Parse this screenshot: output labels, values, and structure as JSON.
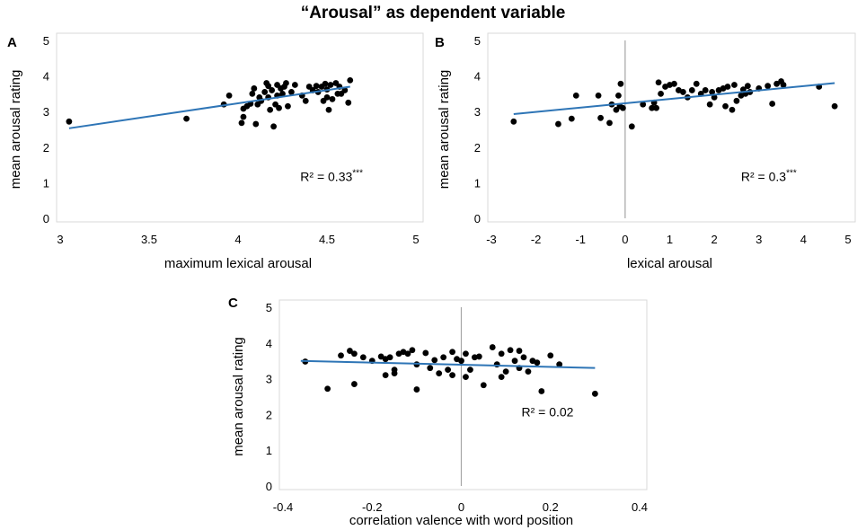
{
  "figure_title": "“Arousal” as dependent variable",
  "chart_data": [
    {
      "type": "scatter",
      "panel_label": "A",
      "xlabel": "maximum lexical arousal",
      "ylabel": "mean arousal rating",
      "xlim": [
        3,
        5
      ],
      "ylim": [
        0,
        5
      ],
      "xticks": [
        3,
        3.5,
        4,
        4.5,
        5
      ],
      "xtick_labels": [
        "3",
        "3.5",
        "4",
        "4.5",
        "5"
      ],
      "yticks": [
        0,
        1,
        2,
        3,
        4,
        5
      ],
      "ytick_labels": [
        "0",
        "1",
        "2",
        "3",
        "4",
        "5"
      ],
      "r2_text": "R² = 0.33",
      "r2_superscript": "***",
      "r2_anchor": [
        4.35,
        1.05
      ],
      "trendline": {
        "x": [
          3.05,
          4.63
        ],
        "y": [
          2.53,
          3.7
        ],
        "color": "#2e75b6"
      },
      "zero_line_x": null,
      "point_color": "#000000",
      "points": [
        [
          3.05,
          2.72
        ],
        [
          3.71,
          2.8
        ],
        [
          3.92,
          3.2
        ],
        [
          3.95,
          3.45
        ],
        [
          4.02,
          2.68
        ],
        [
          4.03,
          2.85
        ],
        [
          4.03,
          3.08
        ],
        [
          4.05,
          3.15
        ],
        [
          4.07,
          3.22
        ],
        [
          4.08,
          3.5
        ],
        [
          4.09,
          3.65
        ],
        [
          4.1,
          2.65
        ],
        [
          4.11,
          3.2
        ],
        [
          4.12,
          3.4
        ],
        [
          4.13,
          3.3
        ],
        [
          4.15,
          3.55
        ],
        [
          4.16,
          3.8
        ],
        [
          4.17,
          3.4
        ],
        [
          4.17,
          3.72
        ],
        [
          4.18,
          3.05
        ],
        [
          4.19,
          3.6
        ],
        [
          4.2,
          2.58
        ],
        [
          4.21,
          3.2
        ],
        [
          4.22,
          3.45
        ],
        [
          4.22,
          3.75
        ],
        [
          4.23,
          3.1
        ],
        [
          4.24,
          3.65
        ],
        [
          4.25,
          3.5
        ],
        [
          4.26,
          3.7
        ],
        [
          4.27,
          3.8
        ],
        [
          4.28,
          3.15
        ],
        [
          4.3,
          3.55
        ],
        [
          4.32,
          3.75
        ],
        [
          4.36,
          3.45
        ],
        [
          4.38,
          3.3
        ],
        [
          4.4,
          3.7
        ],
        [
          4.42,
          3.6
        ],
        [
          4.44,
          3.72
        ],
        [
          4.45,
          3.55
        ],
        [
          4.47,
          3.7
        ],
        [
          4.48,
          3.3
        ],
        [
          4.49,
          3.78
        ],
        [
          4.5,
          3.4
        ],
        [
          4.5,
          3.62
        ],
        [
          4.51,
          3.05
        ],
        [
          4.52,
          3.75
        ],
        [
          4.53,
          3.35
        ],
        [
          4.55,
          3.8
        ],
        [
          4.56,
          3.5
        ],
        [
          4.57,
          3.7
        ],
        [
          4.58,
          3.5
        ],
        [
          4.6,
          3.6
        ],
        [
          4.62,
          3.25
        ],
        [
          4.63,
          3.88
        ]
      ]
    },
    {
      "type": "scatter",
      "panel_label": "B",
      "xlabel": "lexical arousal",
      "ylabel": "mean arousal rating",
      "xlim": [
        -3,
        5
      ],
      "ylim": [
        0,
        5
      ],
      "xticks": [
        -3,
        -2,
        -1,
        0,
        1,
        2,
        3,
        4,
        5
      ],
      "xtick_labels": [
        "-3",
        "-2",
        "-1",
        "0",
        "1",
        "2",
        "3",
        "4",
        "5"
      ],
      "yticks": [
        0,
        1,
        2,
        3,
        4,
        5
      ],
      "ytick_labels": [
        "0",
        "1",
        "2",
        "3",
        "4",
        "5"
      ],
      "r2_text": "R² = 0.3",
      "r2_superscript": "***",
      "r2_anchor": [
        2.6,
        1.05
      ],
      "trendline": {
        "x": [
          -2.5,
          4.7
        ],
        "y": [
          2.93,
          3.8
        ],
        "color": "#2e75b6"
      },
      "zero_line_x": 0,
      "point_color": "#000000",
      "points": [
        [
          -2.5,
          2.72
        ],
        [
          -1.5,
          2.65
        ],
        [
          -1.2,
          2.8
        ],
        [
          -1.1,
          3.45
        ],
        [
          -0.6,
          3.45
        ],
        [
          -0.55,
          2.82
        ],
        [
          -0.35,
          2.68
        ],
        [
          -0.3,
          3.2
        ],
        [
          -0.2,
          3.05
        ],
        [
          -0.15,
          3.45
        ],
        [
          -0.12,
          3.15
        ],
        [
          -0.1,
          3.78
        ],
        [
          -0.05,
          3.1
        ],
        [
          0.15,
          2.58
        ],
        [
          0.4,
          3.2
        ],
        [
          0.6,
          3.1
        ],
        [
          0.65,
          3.25
        ],
        [
          0.7,
          3.1
        ],
        [
          0.75,
          3.82
        ],
        [
          0.8,
          3.5
        ],
        [
          0.9,
          3.7
        ],
        [
          1.0,
          3.75
        ],
        [
          1.1,
          3.78
        ],
        [
          1.2,
          3.6
        ],
        [
          1.3,
          3.55
        ],
        [
          1.4,
          3.4
        ],
        [
          1.5,
          3.6
        ],
        [
          1.6,
          3.78
        ],
        [
          1.7,
          3.5
        ],
        [
          1.8,
          3.6
        ],
        [
          1.9,
          3.2
        ],
        [
          1.95,
          3.55
        ],
        [
          2.0,
          3.4
        ],
        [
          2.1,
          3.6
        ],
        [
          2.2,
          3.65
        ],
        [
          2.25,
          3.15
        ],
        [
          2.3,
          3.7
        ],
        [
          2.4,
          3.05
        ],
        [
          2.45,
          3.75
        ],
        [
          2.5,
          3.3
        ],
        [
          2.6,
          3.45
        ],
        [
          2.65,
          3.62
        ],
        [
          2.7,
          3.5
        ],
        [
          2.75,
          3.72
        ],
        [
          2.8,
          3.55
        ],
        [
          3.0,
          3.65
        ],
        [
          3.2,
          3.72
        ],
        [
          3.3,
          3.22
        ],
        [
          3.4,
          3.78
        ],
        [
          3.5,
          3.85
        ],
        [
          3.55,
          3.75
        ],
        [
          4.35,
          3.7
        ],
        [
          4.7,
          3.15
        ]
      ]
    },
    {
      "type": "scatter",
      "panel_label": "C",
      "xlabel": "correlation valence with word position",
      "ylabel": "mean arousal rating",
      "xlim": [
        -0.4,
        0.4
      ],
      "ylim": [
        0,
        5
      ],
      "xticks": [
        -0.4,
        -0.2,
        0,
        0.2,
        0.4
      ],
      "xtick_labels": [
        "-0.4",
        "-0.2",
        "0",
        "0.2",
        "0.4"
      ],
      "yticks": [
        0,
        1,
        2,
        3,
        4,
        5
      ],
      "ytick_labels": [
        "0",
        "1",
        "2",
        "3",
        "4",
        "5"
      ],
      "r2_text": "R² = 0.02",
      "r2_superscript": "",
      "r2_anchor": [
        0.135,
        1.95
      ],
      "trendline": {
        "x": [
          -0.36,
          0.3
        ],
        "y": [
          3.5,
          3.3
        ],
        "color": "#2e75b6"
      },
      "zero_line_x": 0,
      "point_color": "#000000",
      "points": [
        [
          -0.35,
          3.48
        ],
        [
          -0.3,
          2.72
        ],
        [
          -0.27,
          3.65
        ],
        [
          -0.25,
          3.78
        ],
        [
          -0.24,
          3.7
        ],
        [
          -0.24,
          2.85
        ],
        [
          -0.22,
          3.6
        ],
        [
          -0.2,
          3.5
        ],
        [
          -0.18,
          3.62
        ],
        [
          -0.17,
          3.55
        ],
        [
          -0.17,
          3.1
        ],
        [
          -0.16,
          3.6
        ],
        [
          -0.15,
          3.25
        ],
        [
          -0.15,
          3.15
        ],
        [
          -0.14,
          3.7
        ],
        [
          -0.13,
          3.75
        ],
        [
          -0.12,
          3.7
        ],
        [
          -0.11,
          3.8
        ],
        [
          -0.1,
          3.4
        ],
        [
          -0.1,
          2.7
        ],
        [
          -0.08,
          3.72
        ],
        [
          -0.07,
          3.3
        ],
        [
          -0.06,
          3.52
        ],
        [
          -0.05,
          3.15
        ],
        [
          -0.04,
          3.6
        ],
        [
          -0.03,
          3.25
        ],
        [
          -0.02,
          3.75
        ],
        [
          -0.02,
          3.1
        ],
        [
          -0.01,
          3.55
        ],
        [
          0.0,
          3.5
        ],
        [
          0.01,
          3.7
        ],
        [
          0.01,
          3.05
        ],
        [
          0.02,
          3.25
        ],
        [
          0.03,
          3.6
        ],
        [
          0.04,
          3.62
        ],
        [
          0.05,
          2.82
        ],
        [
          0.07,
          3.88
        ],
        [
          0.08,
          3.4
        ],
        [
          0.09,
          3.7
        ],
        [
          0.09,
          3.05
        ],
        [
          0.1,
          3.2
        ],
        [
          0.11,
          3.8
        ],
        [
          0.12,
          3.5
        ],
        [
          0.13,
          3.3
        ],
        [
          0.13,
          3.78
        ],
        [
          0.14,
          3.6
        ],
        [
          0.15,
          3.2
        ],
        [
          0.16,
          3.5
        ],
        [
          0.17,
          3.45
        ],
        [
          0.18,
          2.65
        ],
        [
          0.2,
          3.65
        ],
        [
          0.22,
          3.4
        ],
        [
          0.3,
          2.58
        ]
      ]
    }
  ]
}
